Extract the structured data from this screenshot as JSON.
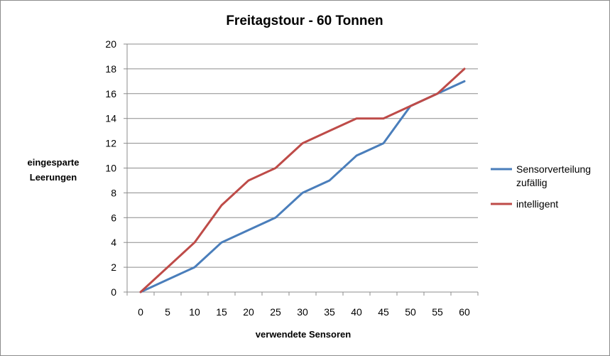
{
  "chart_data": {
    "type": "line",
    "title": "Freitagstour - 60 Tonnen",
    "xlabel": "verwendete Sensoren",
    "ylabel_lines": [
      "eingesparte",
      "Leerungen"
    ],
    "categories": [
      "0",
      "5",
      "10",
      "15",
      "20",
      "25",
      "30",
      "35",
      "40",
      "45",
      "50",
      "55",
      "60"
    ],
    "ylim": [
      0,
      20
    ],
    "yticks": [
      "0",
      "2",
      "4",
      "6",
      "8",
      "10",
      "12",
      "14",
      "16",
      "18",
      "20"
    ],
    "grid": true,
    "legend_position": "right",
    "series": [
      {
        "name_lines": [
          "Sensorverteilung",
          "zufällig"
        ],
        "color": "#4a7ebb",
        "values": [
          0,
          1,
          2,
          4,
          5,
          6,
          8,
          9,
          11,
          12,
          15,
          16,
          17
        ]
      },
      {
        "name_lines": [
          "intelligent"
        ],
        "color": "#be4b48",
        "values": [
          0,
          2,
          4,
          7,
          9,
          10,
          12,
          13,
          14,
          14,
          15,
          16,
          18
        ]
      }
    ]
  }
}
